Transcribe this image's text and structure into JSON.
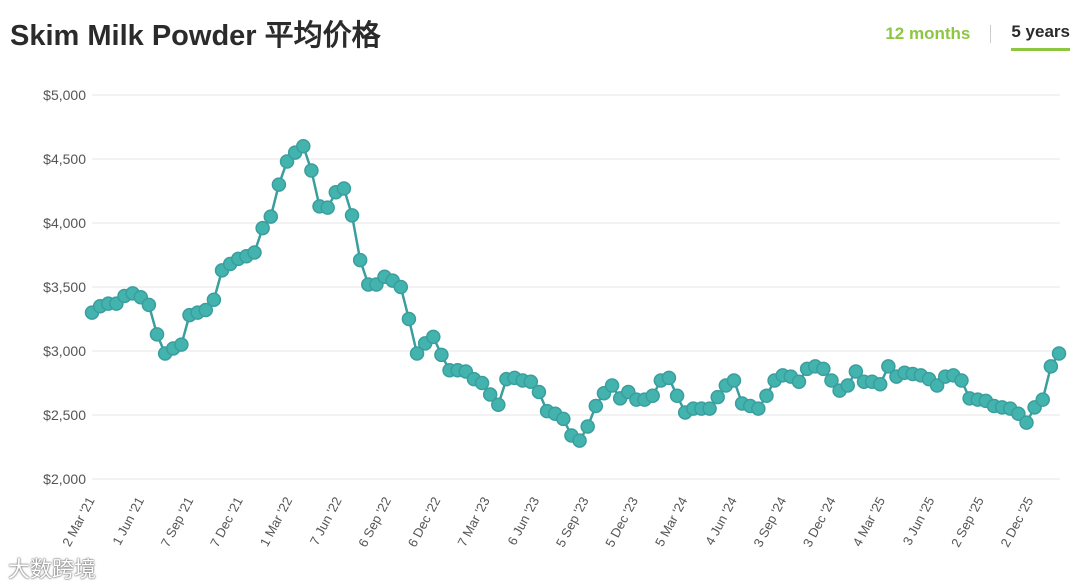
{
  "header": {
    "title": "Skim Milk Powder 平均价格",
    "tab_12": "12 months",
    "tab_5": "5 years"
  },
  "colors": {
    "line": "#3a9e9e",
    "marker_fill": "#43b3ae",
    "grid": "#e6e6e6",
    "accent": "#8dc63f"
  },
  "watermark": "大数跨境",
  "chart_data": {
    "type": "line",
    "ylim": [
      2000,
      5000
    ],
    "yticks": [
      {
        "value": 2000,
        "label": "$2,000"
      },
      {
        "value": 2500,
        "label": "$2,500"
      },
      {
        "value": 3000,
        "label": "$3,000"
      },
      {
        "value": 3500,
        "label": "$3,500"
      },
      {
        "value": 4000,
        "label": "$4,000"
      },
      {
        "value": 4500,
        "label": "$4,500"
      },
      {
        "value": 5000,
        "label": "$5,000"
      }
    ],
    "xtick_labels": [
      "2 Mar '21",
      "1 Jun '21",
      "7 Sep '21",
      "7 Dec '21",
      "1 Mar '22",
      "7 Jun '22",
      "6 Sep '22",
      "6 Dec '22",
      "7 Mar '23",
      "6 Jun '23",
      "5 Sep '23",
      "5 Dec '23",
      "5 Mar '24",
      "4 Jun '24",
      "3 Sep '24",
      "3 Dec '24",
      "4 Mar '25",
      "3 Jun '25",
      "2 Sep '25",
      "2 Dec '25"
    ],
    "series": [
      {
        "values": [
          3300,
          3350,
          3370,
          3370,
          3430,
          3450,
          3420,
          3360,
          3130,
          2980,
          3020,
          3050,
          3280,
          3300,
          3320,
          3400,
          3630,
          3680,
          3720,
          3740,
          3770,
          3960,
          4050,
          4300,
          4480,
          4550,
          4600,
          4410,
          4130,
          4120,
          4240,
          4270,
          4060,
          3710,
          3520,
          3520,
          3580,
          3550,
          3500,
          3250,
          2980,
          3060,
          3110,
          2970,
          2850,
          2850,
          2840,
          2780,
          2750,
          2660,
          2580,
          2780,
          2790,
          2770,
          2760,
          2680,
          2530,
          2510,
          2470,
          2340,
          2300,
          2410,
          2570,
          2670,
          2730,
          2630,
          2680,
          2620,
          2620,
          2650,
          2770,
          2790,
          2650,
          2520,
          2550,
          2550,
          2550,
          2640,
          2730,
          2770,
          2590,
          2570,
          2550,
          2650,
          2770,
          2810,
          2800,
          2760,
          2860,
          2880,
          2860,
          2770,
          2690,
          2730,
          2840,
          2760,
          2760,
          2740,
          2880,
          2800,
          2830,
          2820,
          2810,
          2780,
          2730,
          2800,
          2810,
          2770,
          2630,
          2620,
          2610,
          2570,
          2560,
          2550,
          2510,
          2440,
          2560,
          2620,
          2880,
          2980
        ]
      }
    ],
    "grid": true,
    "legend": "none"
  }
}
